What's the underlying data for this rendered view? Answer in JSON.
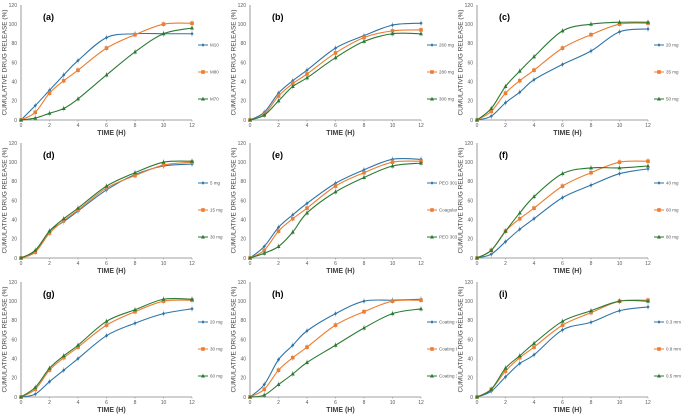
{
  "figure": {
    "colors": [
      "#2e75a8",
      "#ed7d31",
      "#2a7a32"
    ],
    "markers": [
      "diamond",
      "square",
      "triangle"
    ]
  },
  "chart_data": [
    {
      "type": "line",
      "panel": "(a)",
      "title": "",
      "xlabel": "TIME (H)",
      "ylabel": "CUMULATIVE DRUG RELEASE (%)",
      "xlim": [
        0,
        12
      ],
      "ylim": [
        0,
        120
      ],
      "xticks": [
        0,
        2,
        4,
        6,
        8,
        10,
        12
      ],
      "yticks": [
        0,
        20,
        40,
        60,
        80,
        100,
        120
      ],
      "legend": "right",
      "grid": false,
      "x": [
        0,
        1,
        2,
        3,
        4,
        6,
        8,
        10,
        12
      ],
      "series": [
        {
          "name": "M10",
          "values": [
            0,
            15,
            31,
            47,
            62,
            86,
            90,
            90,
            90
          ]
        },
        {
          "name": "M80",
          "values": [
            0,
            8,
            28,
            41,
            52,
            75,
            89,
            100,
            101
          ]
        },
        {
          "name": "M70",
          "values": [
            0,
            2,
            7,
            12,
            22,
            47,
            71,
            90,
            96
          ]
        }
      ]
    },
    {
      "type": "line",
      "panel": "(b)",
      "title": "",
      "xlabel": "TIME (H)",
      "ylabel": "CUMULATIVE DRUG RELEASE (%)",
      "xlim": [
        0,
        12
      ],
      "ylim": [
        0,
        120
      ],
      "xticks": [
        0,
        2,
        4,
        6,
        8,
        10,
        12
      ],
      "yticks": [
        0,
        20,
        40,
        60,
        80,
        100,
        120
      ],
      "legend": "right",
      "grid": false,
      "x": [
        0,
        1,
        2,
        3,
        4,
        6,
        8,
        10,
        12
      ],
      "series": [
        {
          "name": "260 mg",
          "values": [
            0,
            8,
            28,
            41,
            52,
            75,
            88,
            99,
            101
          ]
        },
        {
          "name": "280 mg",
          "values": [
            0,
            6,
            25,
            38,
            48,
            70,
            86,
            93,
            94
          ]
        },
        {
          "name": "300 mg",
          "values": [
            0,
            5,
            20,
            35,
            44,
            65,
            82,
            90,
            90
          ]
        }
      ]
    },
    {
      "type": "line",
      "panel": "(c)",
      "title": "",
      "xlabel": "TIME (H)",
      "ylabel": "CUMULATIVE DRUG RELEASE (%)",
      "xlim": [
        0,
        12
      ],
      "ylim": [
        0,
        120
      ],
      "xticks": [
        0,
        2,
        4,
        6,
        8,
        10,
        12
      ],
      "yticks": [
        0,
        20,
        40,
        60,
        80,
        100,
        120
      ],
      "legend": "right",
      "grid": false,
      "x": [
        0,
        1,
        2,
        3,
        4,
        6,
        8,
        10,
        12
      ],
      "series": [
        {
          "name": "20 mg",
          "values": [
            0,
            4,
            18,
            29,
            42,
            58,
            72,
            92,
            95
          ]
        },
        {
          "name": "35 mg",
          "values": [
            0,
            9,
            28,
            41,
            52,
            75,
            89,
            100,
            101
          ]
        },
        {
          "name": "50 mg",
          "values": [
            0,
            12,
            35,
            51,
            66,
            93,
            100,
            102,
            102
          ]
        }
      ]
    },
    {
      "type": "line",
      "panel": "(d)",
      "title": "",
      "xlabel": "TIME (H)",
      "ylabel": "CUMULATIVE DRUG RELEASE (%)",
      "xlim": [
        0,
        12
      ],
      "ylim": [
        0,
        120
      ],
      "xticks": [
        0,
        2,
        4,
        6,
        8,
        10,
        12
      ],
      "yticks": [
        0,
        20,
        40,
        60,
        80,
        100,
        120
      ],
      "legend": "right",
      "grid": false,
      "x": [
        0,
        1,
        2,
        3,
        4,
        6,
        8,
        10,
        12
      ],
      "series": [
        {
          "name": "5 mg",
          "values": [
            0,
            7,
            28,
            38,
            49,
            71,
            87,
            96,
            98
          ]
        },
        {
          "name": "15 mg",
          "values": [
            0,
            6,
            26,
            39,
            50,
            73,
            86,
            97,
            100
          ]
        },
        {
          "name": "30 mg",
          "values": [
            0,
            8,
            28,
            41,
            52,
            75,
            89,
            100,
            101
          ]
        }
      ]
    },
    {
      "type": "line",
      "panel": "(e)",
      "title": "",
      "xlabel": "TIME (H)",
      "ylabel": "CUMULATIVE DRUG RELEASE (%)",
      "xlim": [
        0,
        12
      ],
      "ylim": [
        0,
        120
      ],
      "xticks": [
        0,
        2,
        4,
        6,
        8,
        10,
        12
      ],
      "yticks": [
        0,
        20,
        40,
        60,
        80,
        100,
        120
      ],
      "legend": "right",
      "grid": false,
      "x": [
        0,
        1,
        2,
        3,
        4,
        6,
        8,
        10,
        12
      ],
      "series": [
        {
          "name": "PEO 301",
          "values": [
            0,
            12,
            32,
            45,
            57,
            78,
            92,
            103,
            103
          ]
        },
        {
          "name": "Coagulant",
          "values": [
            0,
            8,
            28,
            41,
            52,
            75,
            89,
            100,
            101
          ]
        },
        {
          "name": "PEO 303",
          "values": [
            0,
            5,
            12,
            27,
            47,
            69,
            84,
            96,
            99
          ]
        }
      ]
    },
    {
      "type": "line",
      "panel": "(f)",
      "title": "",
      "xlabel": "TIME (H)",
      "ylabel": "CUMULATIVE DRUG RELEASE (%)",
      "xlim": [
        0,
        12
      ],
      "ylim": [
        0,
        120
      ],
      "xticks": [
        0,
        2,
        4,
        6,
        8,
        10,
        12
      ],
      "yticks": [
        0,
        20,
        40,
        60,
        80,
        100,
        120
      ],
      "legend": "right",
      "grid": false,
      "x": [
        0,
        1,
        2,
        3,
        4,
        6,
        8,
        10,
        12
      ],
      "series": [
        {
          "name": "40 mg",
          "values": [
            0,
            4,
            17,
            30,
            41,
            63,
            76,
            88,
            93
          ]
        },
        {
          "name": "60 mg",
          "values": [
            0,
            8,
            28,
            41,
            52,
            75,
            89,
            100,
            101
          ]
        },
        {
          "name": "80 mg",
          "values": [
            0,
            8,
            28,
            47,
            64,
            88,
            94,
            94,
            96
          ]
        }
      ]
    },
    {
      "type": "line",
      "panel": "(g)",
      "title": "",
      "xlabel": "TIME (H)",
      "ylabel": "CUMULATIVE DRUG RELEASE (%)",
      "xlim": [
        0,
        12
      ],
      "ylim": [
        0,
        120
      ],
      "xticks": [
        0,
        2,
        4,
        6,
        8,
        10,
        12
      ],
      "yticks": [
        0,
        20,
        40,
        60,
        80,
        100,
        120
      ],
      "legend": "right",
      "grid": false,
      "x": [
        0,
        1,
        2,
        3,
        4,
        6,
        8,
        10,
        12
      ],
      "series": [
        {
          "name": "20 mg",
          "values": [
            0,
            3,
            16,
            28,
            40,
            64,
            77,
            87,
            92
          ]
        },
        {
          "name": "30 mg",
          "values": [
            0,
            8,
            28,
            41,
            52,
            75,
            89,
            100,
            101
          ]
        },
        {
          "name": "60 mg",
          "values": [
            0,
            10,
            30,
            43,
            54,
            79,
            91,
            102,
            102
          ]
        }
      ]
    },
    {
      "type": "line",
      "panel": "(h)",
      "title": "",
      "xlabel": "TIME (H)",
      "ylabel": "CUMULATIVE DRUG RELEASE (%)",
      "xlim": [
        0,
        12
      ],
      "ylim": [
        0,
        120
      ],
      "xticks": [
        0,
        2,
        4,
        6,
        8,
        10,
        12
      ],
      "yticks": [
        0,
        20,
        40,
        60,
        80,
        100,
        120
      ],
      "legend": "right",
      "grid": false,
      "x": [
        0,
        1,
        2,
        3,
        4,
        6,
        8,
        10,
        12
      ],
      "series": [
        {
          "name": "Coating 4%",
          "values": [
            0,
            13,
            39,
            54,
            69,
            87,
            100,
            101,
            102
          ]
        },
        {
          "name": "Coating 8%",
          "values": [
            0,
            8,
            28,
            41,
            52,
            75,
            89,
            100,
            101
          ]
        },
        {
          "name": "Coating 12%",
          "values": [
            0,
            2,
            13,
            24,
            36,
            54,
            72,
            87,
            92
          ]
        }
      ]
    },
    {
      "type": "line",
      "panel": "(i)",
      "title": "",
      "xlabel": "TIME (H)",
      "ylabel": "CUMULATIVE DRUG RELEASE (%)",
      "xlim": [
        0,
        12
      ],
      "ylim": [
        0,
        120
      ],
      "xticks": [
        0,
        2,
        4,
        6,
        8,
        10,
        12
      ],
      "yticks": [
        0,
        20,
        40,
        60,
        80,
        100,
        120
      ],
      "legend": "right",
      "grid": false,
      "x": [
        0,
        1,
        2,
        3,
        4,
        6,
        8,
        10,
        12
      ],
      "series": [
        {
          "name": "0.3 mm",
          "values": [
            0,
            6,
            21,
            35,
            44,
            70,
            78,
            90,
            94
          ]
        },
        {
          "name": "0.8 mm",
          "values": [
            0,
            8,
            27,
            41,
            52,
            75,
            88,
            100,
            101
          ]
        },
        {
          "name": "0.5 mm",
          "values": [
            0,
            8,
            30,
            43,
            56,
            79,
            90,
            100,
            100
          ]
        }
      ]
    }
  ]
}
